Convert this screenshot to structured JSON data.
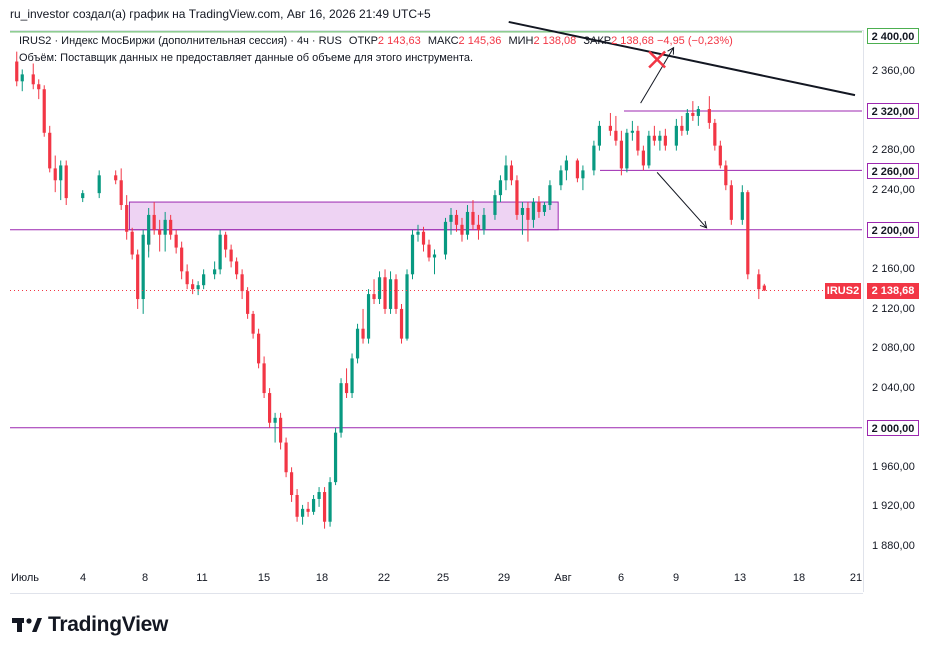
{
  "header": {
    "attribution": "ru_investor создал(а) график на TradingView.com, Авг 16, 2026 21:49 UTC+5"
  },
  "legend": {
    "symbol_line": "IRUS2 · Индекс МосБиржи (дополнительная сессия) · 4ч · RUS",
    "open_label": "ОТКР",
    "open_value": "2 143,63",
    "high_label": "МАКС",
    "high_value": "2 145,36",
    "low_label": "МИН",
    "low_value": "2 138,08",
    "close_label": "ЗАКР",
    "close_value": "2 138,68",
    "change_value": "−4,95 (−0,23%)",
    "volume_note": "Объём: Поставщик данных не предоставляет данные об объеме для этого инструмента."
  },
  "price_axis": {
    "ticks": [
      "2 360,00",
      "2 280,00",
      "2 240,00",
      "2 160,00",
      "2 120,00",
      "2 080,00",
      "2 040,00",
      "1 960,00",
      "1 920,00",
      "1 880,00"
    ],
    "levels": [
      "2 400,00",
      "2 320,00",
      "2 260,00",
      "2 200,00",
      "2 000,00"
    ],
    "last_price": "2 138,68",
    "symbol_tag": "IRUS2"
  },
  "time_axis": {
    "ticks": [
      "Июль",
      "4",
      "8",
      "11",
      "15",
      "18",
      "22",
      "25",
      "29",
      "Авг",
      "6",
      "9",
      "13",
      "18",
      "21"
    ]
  },
  "branding": {
    "logo_text": "TradingView"
  },
  "colors": {
    "up": "#089981",
    "down": "#f23645",
    "level": "#9c27b0",
    "level_top": "#4caf50",
    "zone_fill": "#e8c4ef"
  },
  "chart_data": {
    "type": "candlestick",
    "title": "IRUS2 · Индекс МосБиржи (дополнительная сессия) · 4ч · RUS",
    "xlabel": "",
    "ylabel": "",
    "ylim": [
      1868,
      2410
    ],
    "x_range": [
      "2026-07-01",
      "2026-08-21"
    ],
    "horizontal_levels": [
      2400,
      2320,
      2260,
      2200,
      2000
    ],
    "zone": {
      "from": "2026-07-08",
      "to": "2026-08-03",
      "low": 2200,
      "high": 2228
    },
    "trendline": {
      "start": [
        "2026-07-31",
        2410
      ],
      "end": [
        "2026-08-21",
        2336
      ]
    },
    "arrows": [
      {
        "from": [
          "2026-08-08",
          2328
        ],
        "to": [
          "2026-08-10",
          2384
        ]
      },
      {
        "from": [
          "2026-08-09",
          2258
        ],
        "to": [
          "2026-08-12",
          2202
        ]
      }
    ],
    "cross_marker": [
      "2026-08-09",
      2372
    ],
    "last_price": 2138.68,
    "grid": false,
    "candles": [
      [
        "07-01",
        2370,
        2380,
        2345,
        2350
      ],
      [
        "07-01",
        2350,
        2362,
        2340,
        2357
      ],
      [
        "07-02",
        2357,
        2368,
        2342,
        2347
      ],
      [
        "07-02",
        2347,
        2352,
        2332,
        2342
      ],
      [
        "07-02",
        2342,
        2346,
        2294,
        2298
      ],
      [
        "07-03",
        2298,
        2305,
        2258,
        2262
      ],
      [
        "07-03",
        2262,
        2275,
        2238,
        2250
      ],
      [
        "07-03",
        2250,
        2270,
        2230,
        2265
      ],
      [
        "07-04",
        2265,
        2270,
        2225,
        2232
      ],
      [
        "07-05",
        2232,
        2240,
        2228,
        2237
      ],
      [
        "07-06",
        2237,
        2260,
        2232,
        2255
      ],
      [
        "07-07",
        2255,
        2260,
        2246,
        2250
      ],
      [
        "07-07",
        2250,
        2262,
        2220,
        2225
      ],
      [
        "07-07",
        2225,
        2235,
        2190,
        2198
      ],
      [
        "07-08",
        2198,
        2202,
        2170,
        2175
      ],
      [
        "07-08",
        2175,
        2180,
        2120,
        2130
      ],
      [
        "07-08",
        2130,
        2200,
        2115,
        2195
      ],
      [
        "07-08",
        2195,
        2200,
        2178,
        2185
      ],
      [
        "07-09",
        2185,
        2222,
        2172,
        2215
      ],
      [
        "07-09",
        2215,
        2228,
        2195,
        2200
      ],
      [
        "07-09",
        2200,
        2210,
        2178,
        2195
      ],
      [
        "07-10",
        2195,
        2218,
        2178,
        2210
      ],
      [
        "07-10",
        2210,
        2215,
        2190,
        2195
      ],
      [
        "07-10",
        2195,
        2200,
        2176,
        2182
      ],
      [
        "07-11",
        2182,
        2188,
        2150,
        2158
      ],
      [
        "07-11",
        2158,
        2165,
        2140,
        2145
      ],
      [
        "07-11",
        2145,
        2150,
        2135,
        2140
      ],
      [
        "07-12",
        2140,
        2148,
        2134,
        2144
      ],
      [
        "07-12",
        2144,
        2160,
        2140,
        2155
      ],
      [
        "07-13",
        2155,
        2168,
        2150,
        2160
      ],
      [
        "07-13",
        2160,
        2200,
        2155,
        2195
      ],
      [
        "07-13",
        2195,
        2198,
        2172,
        2180
      ],
      [
        "07-14",
        2180,
        2185,
        2162,
        2168
      ],
      [
        "07-14",
        2168,
        2172,
        2150,
        2155
      ],
      [
        "07-14",
        2155,
        2160,
        2130,
        2138
      ],
      [
        "07-15",
        2138,
        2142,
        2110,
        2115
      ],
      [
        "07-15",
        2115,
        2118,
        2090,
        2095
      ],
      [
        "07-15",
        2095,
        2100,
        2060,
        2065
      ],
      [
        "07-16",
        2065,
        2072,
        2030,
        2035
      ],
      [
        "07-16",
        2035,
        2040,
        2000,
        2005
      ],
      [
        "07-16",
        2005,
        2015,
        1985,
        2010
      ],
      [
        "07-17",
        2010,
        2015,
        1978,
        1985
      ],
      [
        "07-17",
        1985,
        1990,
        1950,
        1955
      ],
      [
        "07-17",
        1955,
        1960,
        1925,
        1932
      ],
      [
        "07-18",
        1932,
        1938,
        1905,
        1910
      ],
      [
        "07-18",
        1910,
        1922,
        1902,
        1918
      ],
      [
        "07-18",
        1918,
        1925,
        1910,
        1915
      ],
      [
        "07-19",
        1915,
        1932,
        1912,
        1928
      ],
      [
        "07-19",
        1928,
        1940,
        1920,
        1935
      ],
      [
        "07-19",
        1935,
        1940,
        1898,
        1905
      ],
      [
        "07-20",
        1905,
        1950,
        1900,
        1945
      ],
      [
        "07-20",
        1945,
        2000,
        1942,
        1995
      ],
      [
        "07-20",
        1995,
        2050,
        1990,
        2045
      ],
      [
        "07-21",
        2045,
        2060,
        2030,
        2035
      ],
      [
        "07-21",
        2035,
        2075,
        2030,
        2070
      ],
      [
        "07-21",
        2070,
        2105,
        2065,
        2100
      ],
      [
        "07-22",
        2100,
        2120,
        2085,
        2090
      ],
      [
        "07-22",
        2090,
        2140,
        2085,
        2135
      ],
      [
        "07-22",
        2135,
        2150,
        2125,
        2130
      ],
      [
        "07-23",
        2130,
        2158,
        2125,
        2152
      ],
      [
        "07-23",
        2152,
        2160,
        2115,
        2120
      ],
      [
        "07-23",
        2120,
        2158,
        2115,
        2150
      ],
      [
        "07-24",
        2150,
        2155,
        2115,
        2120
      ],
      [
        "07-24",
        2120,
        2125,
        2085,
        2090
      ],
      [
        "07-24",
        2090,
        2160,
        2088,
        2155
      ],
      [
        "07-25",
        2155,
        2200,
        2150,
        2195
      ],
      [
        "07-25",
        2195,
        2205,
        2188,
        2198
      ],
      [
        "07-25",
        2198,
        2203,
        2178,
        2185
      ],
      [
        "07-26",
        2185,
        2190,
        2168,
        2172
      ],
      [
        "07-26",
        2172,
        2180,
        2155,
        2175
      ],
      [
        "07-27",
        2175,
        2212,
        2170,
        2208
      ],
      [
        "07-27",
        2208,
        2222,
        2195,
        2215
      ],
      [
        "07-27",
        2215,
        2220,
        2198,
        2205
      ],
      [
        "07-28",
        2205,
        2212,
        2188,
        2195
      ],
      [
        "07-28",
        2195,
        2225,
        2190,
        2218
      ],
      [
        "07-28",
        2218,
        2230,
        2200,
        2205
      ],
      [
        "07-29",
        2205,
        2215,
        2190,
        2200
      ],
      [
        "07-29",
        2200,
        2222,
        2195,
        2215
      ],
      [
        "07-30",
        2215,
        2240,
        2210,
        2235
      ],
      [
        "07-30",
        2235,
        2255,
        2228,
        2250
      ],
      [
        "07-30",
        2250,
        2275,
        2240,
        2265
      ],
      [
        "07-31",
        2265,
        2270,
        2245,
        2250
      ],
      [
        "07-31",
        2250,
        2255,
        2210,
        2215
      ],
      [
        "07-31",
        2215,
        2228,
        2195,
        2222
      ],
      [
        "08-01",
        2222,
        2228,
        2188,
        2210
      ],
      [
        "08-01",
        2210,
        2232,
        2202,
        2228
      ],
      [
        "08-01",
        2228,
        2234,
        2212,
        2218
      ],
      [
        "08-02",
        2218,
        2228,
        2214,
        2225
      ],
      [
        "08-02",
        2225,
        2250,
        2220,
        2245
      ],
      [
        "08-03",
        2245,
        2265,
        2240,
        2260
      ],
      [
        "08-03",
        2260,
        2275,
        2250,
        2270
      ],
      [
        "08-04",
        2270,
        2272,
        2248,
        2252
      ],
      [
        "08-04",
        2252,
        2265,
        2240,
        2260
      ],
      [
        "08-05",
        2260,
        2290,
        2255,
        2285
      ],
      [
        "08-05",
        2285,
        2310,
        2280,
        2305
      ],
      [
        "08-06",
        2305,
        2318,
        2295,
        2300
      ],
      [
        "08-06",
        2300,
        2315,
        2285,
        2290
      ],
      [
        "08-06",
        2290,
        2300,
        2255,
        2262
      ],
      [
        "08-07",
        2262,
        2302,
        2258,
        2298
      ],
      [
        "08-07",
        2298,
        2310,
        2290,
        2300
      ],
      [
        "08-07",
        2300,
        2305,
        2275,
        2280
      ],
      [
        "08-08",
        2280,
        2285,
        2260,
        2265
      ],
      [
        "08-08",
        2265,
        2300,
        2262,
        2295
      ],
      [
        "08-08",
        2295,
        2305,
        2285,
        2290
      ],
      [
        "08-09",
        2290,
        2300,
        2280,
        2295
      ],
      [
        "08-09",
        2295,
        2302,
        2280,
        2285
      ],
      [
        "08-10",
        2285,
        2312,
        2280,
        2305
      ],
      [
        "08-10",
        2305,
        2315,
        2295,
        2300
      ],
      [
        "08-10",
        2300,
        2322,
        2296,
        2318
      ],
      [
        "08-11",
        2318,
        2330,
        2310,
        2315
      ],
      [
        "08-11",
        2315,
        2325,
        2305,
        2322
      ],
      [
        "08-12",
        2322,
        2335,
        2302,
        2308
      ],
      [
        "08-12",
        2308,
        2312,
        2280,
        2285
      ],
      [
        "08-12",
        2285,
        2290,
        2262,
        2265
      ],
      [
        "08-13",
        2265,
        2270,
        2240,
        2245
      ],
      [
        "08-13",
        2245,
        2250,
        2205,
        2210
      ],
      [
        "08-14",
        2210,
        2245,
        2205,
        2238
      ],
      [
        "08-14",
        2238,
        2240,
        2150,
        2155
      ],
      [
        "08-15",
        2155,
        2160,
        2130,
        2140
      ],
      [
        "08-15",
        2143.63,
        2145.36,
        2138.08,
        2138.68
      ]
    ]
  }
}
